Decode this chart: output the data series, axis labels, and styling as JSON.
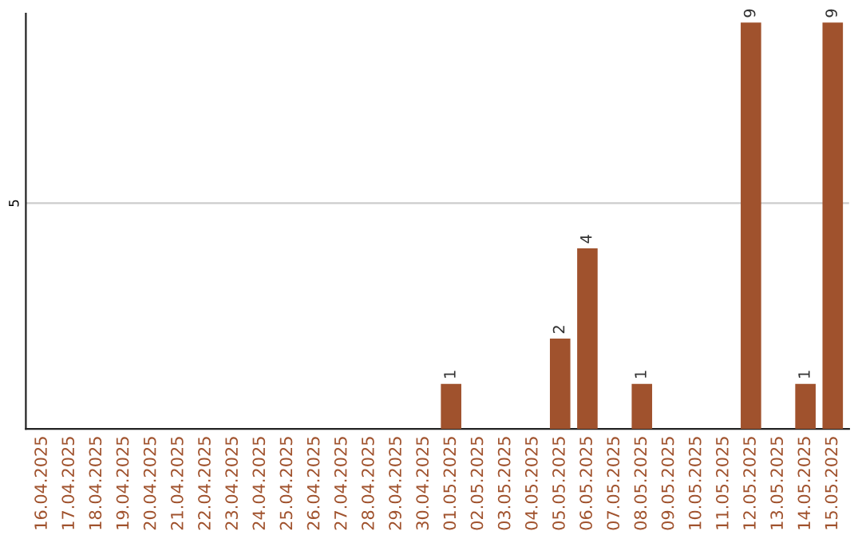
{
  "chart_data": {
    "type": "bar",
    "categories": [
      "16.04.2025",
      "17.04.2025",
      "18.04.2025",
      "19.04.2025",
      "20.04.2025",
      "21.04.2025",
      "22.04.2025",
      "23.04.2025",
      "24.04.2025",
      "25.04.2025",
      "26.04.2025",
      "27.04.2025",
      "28.04.2025",
      "29.04.2025",
      "30.04.2025",
      "01.05.2025",
      "02.05.2025",
      "03.05.2025",
      "04.05.2025",
      "05.05.2025",
      "06.05.2025",
      "07.05.2025",
      "08.05.2025",
      "09.05.2025",
      "10.05.2025",
      "11.05.2025",
      "12.05.2025",
      "13.05.2025",
      "14.05.2025",
      "15.05.2025"
    ],
    "values": [
      null,
      null,
      null,
      null,
      null,
      null,
      null,
      null,
      null,
      null,
      null,
      null,
      null,
      null,
      null,
      1,
      null,
      null,
      null,
      2,
      4,
      null,
      1,
      null,
      null,
      null,
      9,
      null,
      1,
      9
    ],
    "value_labels": [
      null,
      null,
      null,
      null,
      null,
      null,
      null,
      null,
      null,
      null,
      null,
      null,
      null,
      null,
      null,
      "1",
      null,
      null,
      null,
      "2",
      "4",
      null,
      "1",
      null,
      null,
      null,
      "9",
      null,
      "1",
      "9"
    ],
    "color": "#a0522d",
    "ylim": [
      0,
      9.2
    ],
    "yticks": [
      5
    ],
    "grid": "y"
  }
}
